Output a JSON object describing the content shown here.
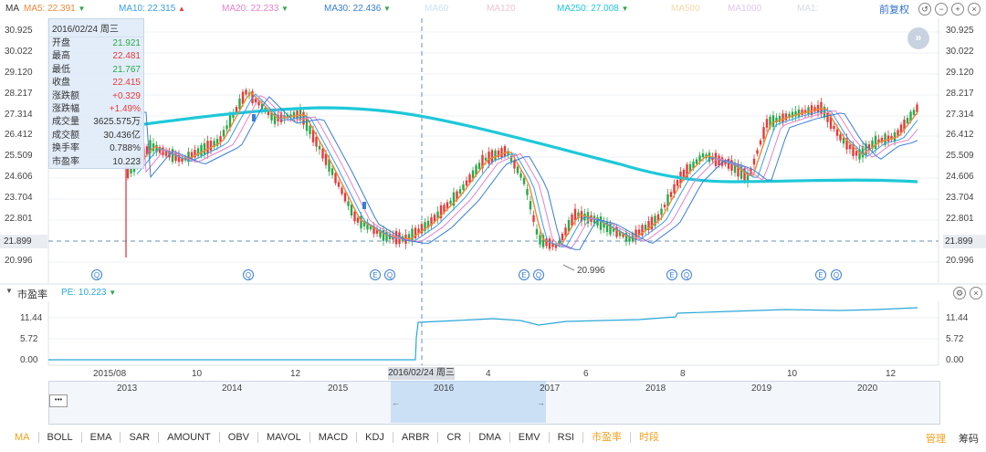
{
  "header": {
    "symbol": "MA",
    "ma_items": [
      {
        "label": "MA5: 22.391",
        "color": "#f0883a",
        "trend": "down"
      },
      {
        "label": "MA10: 22.315",
        "color": "#3a9de8",
        "trend": "up"
      },
      {
        "label": "MA20: 22.233",
        "color": "#e880c8",
        "trend": "down"
      },
      {
        "label": "MA30: 22.436",
        "color": "#3a7ed8",
        "trend": "down"
      },
      {
        "label": "MA60",
        "color": "#c9e3f2",
        "trend": ""
      },
      {
        "label": "MA120",
        "color": "#f0c4d4",
        "trend": ""
      },
      {
        "label": "MA250: 27.008",
        "color": "#1ec8d8",
        "trend": "down"
      },
      {
        "label": "MA500",
        "color": "#f5d9a8",
        "trend": ""
      },
      {
        "label": "MA1000",
        "color": "#dcc8ee",
        "trend": ""
      },
      {
        "label": "MA1:",
        "color": "#cfdbe8",
        "trend": ""
      }
    ],
    "adjust_label": "前复权",
    "tools": [
      "undo-icon",
      "zoom-out-icon",
      "zoom-in-icon",
      "close-icon"
    ]
  },
  "tooltip": {
    "title": "2016/02/24 周三",
    "rows": [
      {
        "k": "开盘",
        "v": "21.921",
        "c": "green"
      },
      {
        "k": "最高",
        "v": "22.481",
        "c": "red"
      },
      {
        "k": "最低",
        "v": "21.767",
        "c": "green"
      },
      {
        "k": "收盘",
        "v": "22.415",
        "c": "red"
      },
      {
        "k": "涨跌额",
        "v": "+0.329",
        "c": "red"
      },
      {
        "k": "涨跌幅",
        "v": "+1.49%",
        "c": "red"
      },
      {
        "k": "成交量",
        "v": "3625.575万",
        "c": ""
      },
      {
        "k": "成交额",
        "v": "30.436亿",
        "c": ""
      },
      {
        "k": "换手率",
        "v": "0.788%",
        "c": ""
      },
      {
        "k": "市盈率",
        "v": "10.223",
        "c": ""
      }
    ]
  },
  "price_axis": [
    "30.925",
    "30.022",
    "29.120",
    "28.217",
    "27.314",
    "26.412",
    "25.509",
    "24.606",
    "23.704",
    "22.801",
    "21.899",
    "20.996"
  ],
  "crosshair_price": "21.899",
  "low_annotation": "20.996",
  "pe_panel": {
    "title": "市盈率",
    "pe_label": "PE: 10.223",
    "axis": [
      "11.44",
      "5.72",
      "0.00"
    ]
  },
  "time_axis": [
    "2015/08",
    "10",
    "12",
    "4",
    "6",
    "8",
    "10",
    "12"
  ],
  "crosshair_date": "2016/02/24 周三",
  "navigator_years": [
    "2013",
    "2014",
    "2015",
    "2016",
    "2017",
    "2018",
    "2019",
    "2020"
  ],
  "bottom_tabs": [
    "MA",
    "BOLL",
    "EMA",
    "SAR",
    "AMOUNT",
    "OBV",
    "MAVOL",
    "MACD",
    "KDJ",
    "ARBR",
    "CR",
    "DMA",
    "EMV",
    "RSI",
    "市盈率",
    "时段"
  ],
  "bottom_active": [
    "MA",
    "市盈率",
    "时段"
  ],
  "bottom_right": [
    "管理",
    "筹码"
  ],
  "colors": {
    "up": "#e43b3b",
    "down": "#2aa84a",
    "ma250": "#1ec8d8",
    "pe_line": "#2aa8d8"
  }
}
